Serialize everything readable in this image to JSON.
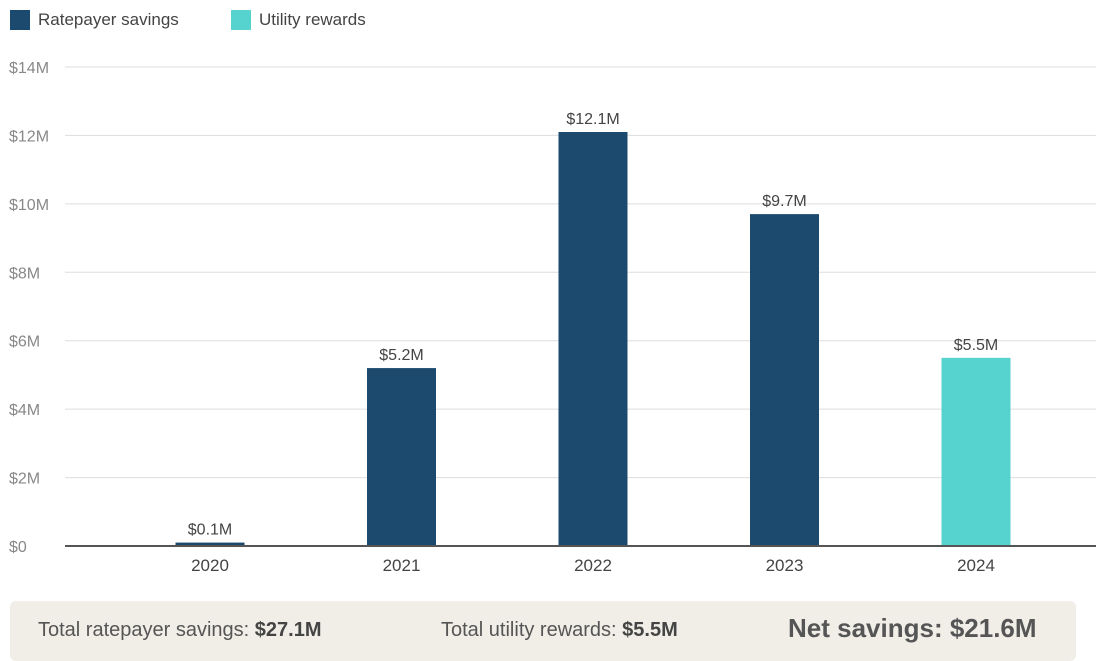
{
  "legend": [
    {
      "label": "Ratepayer savings",
      "color": "#1b4a6e"
    },
    {
      "label": "Utility rewards",
      "color": "#56d3cf"
    }
  ],
  "chart_data": {
    "type": "bar",
    "categories": [
      "2020",
      "2021",
      "2022",
      "2023",
      "2024"
    ],
    "values": [
      0.1,
      5.2,
      12.1,
      9.7,
      5.5
    ],
    "value_labels": [
      "$0.1M",
      "$5.2M",
      "$12.1M",
      "$9.7M",
      "$5.5M"
    ],
    "bar_series": [
      "Ratepayer savings",
      "Ratepayer savings",
      "Ratepayer savings",
      "Ratepayer savings",
      "Utility rewards"
    ],
    "series": [
      {
        "name": "Ratepayer savings",
        "color": "#1b4a6e"
      },
      {
        "name": "Utility rewards",
        "color": "#56d3cf"
      }
    ],
    "ylim": [
      0,
      14
    ],
    "y_ticks": [
      0,
      2,
      4,
      6,
      8,
      10,
      12,
      14
    ],
    "y_tick_labels": [
      "$0",
      "$2M",
      "$4M",
      "$6M",
      "$8M",
      "$10M",
      "$12M",
      "$14M"
    ],
    "grid": true,
    "legend_position": "top-left",
    "xlabel": "",
    "ylabel": ""
  },
  "summary": {
    "ratepayer_label": "Total ratepayer savings: ",
    "ratepayer_value": "$27.1M",
    "utility_label": "Total utility rewards: ",
    "utility_value": "$5.5M",
    "net_text": "Net savings: $21.6M"
  }
}
